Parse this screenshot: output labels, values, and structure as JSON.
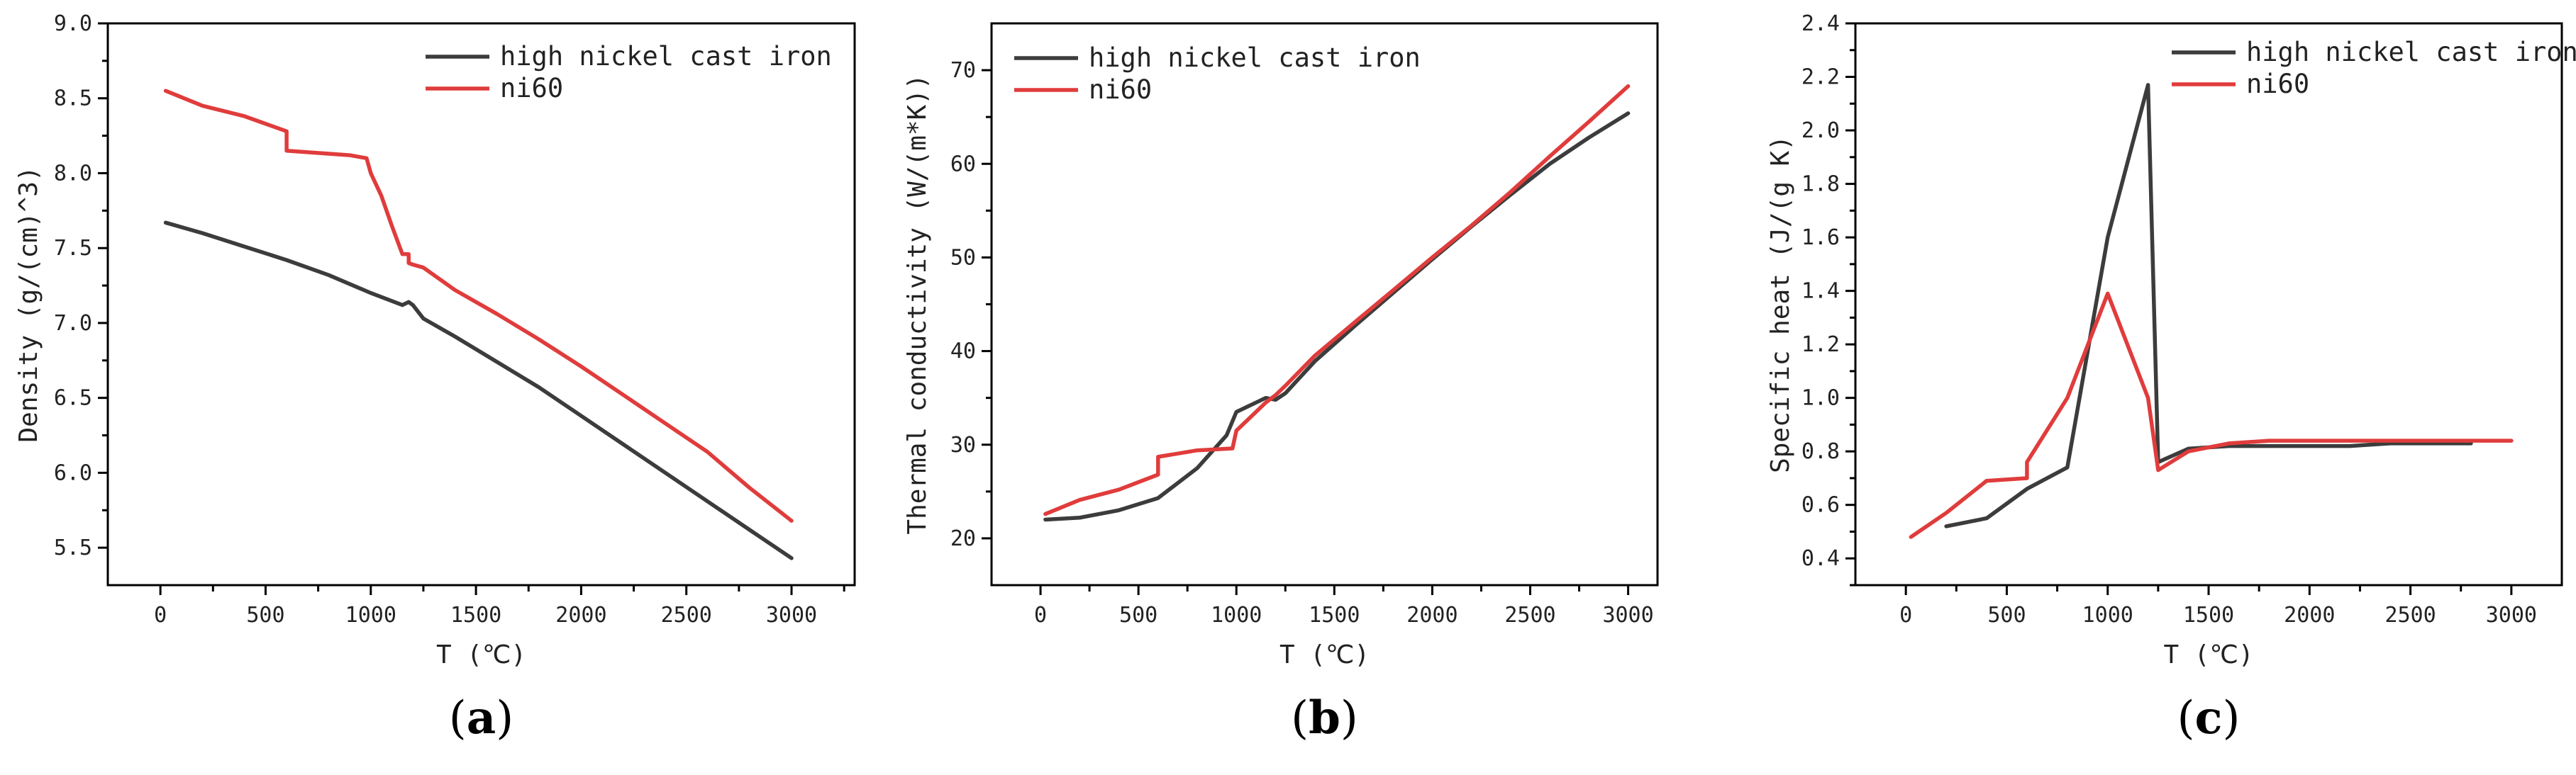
{
  "colors": {
    "high_nickel_cast_iron": "#3c3c3c",
    "ni60": "#e03c3c"
  },
  "chart_data": [
    {
      "type": "line",
      "panel_label": "(a)",
      "panel_letter": "a",
      "xlabel": "T (℃)",
      "ylabel": "Density (g/(cm)^3)",
      "xlim": [
        -250,
        3300
      ],
      "ylim": [
        5.25,
        9.0
      ],
      "xticks": [
        0,
        500,
        1000,
        1500,
        2000,
        2500,
        3000
      ],
      "xtick_labels": [
        "0",
        "500",
        "1000",
        "1500",
        "2000",
        "2500",
        "3000"
      ],
      "yticks": [
        5.5,
        6.0,
        6.5,
        7.0,
        7.5,
        8.0,
        8.5,
        9.0
      ],
      "ytick_labels": [
        "5.5",
        "6.0",
        "6.5",
        "7.0",
        "7.5",
        "8.0",
        "8.5",
        "9.0"
      ],
      "legend_position": "top-right",
      "series": [
        {
          "name": "high nickel cast iron",
          "color_key": "high_nickel_cast_iron",
          "x": [
            25,
            200,
            400,
            600,
            800,
            1000,
            1150,
            1180,
            1200,
            1250,
            1400,
            1600,
            1800,
            2000,
            2200,
            2400,
            2600,
            2800,
            3000
          ],
          "y": [
            7.67,
            7.6,
            7.51,
            7.42,
            7.32,
            7.2,
            7.12,
            7.14,
            7.12,
            7.03,
            6.91,
            6.74,
            6.57,
            6.38,
            6.19,
            6.0,
            5.81,
            5.62,
            5.43
          ]
        },
        {
          "name": "ni60",
          "color_key": "ni60",
          "x": [
            25,
            200,
            400,
            600,
            600,
            700,
            900,
            980,
            1000,
            1050,
            1100,
            1150,
            1180,
            1180,
            1200,
            1250,
            1400,
            1600,
            1800,
            2000,
            2200,
            2400,
            2600,
            2800,
            3000
          ],
          "y": [
            8.55,
            8.45,
            8.38,
            8.28,
            8.15,
            8.14,
            8.12,
            8.1,
            8.0,
            7.85,
            7.65,
            7.46,
            7.46,
            7.4,
            7.39,
            7.37,
            7.22,
            7.06,
            6.89,
            6.71,
            6.52,
            6.33,
            6.14,
            5.9,
            5.68
          ]
        }
      ]
    },
    {
      "type": "line",
      "panel_label": "(b)",
      "panel_letter": "b",
      "xlabel": "T (℃)",
      "ylabel": "Thermal conductivity (W/(m*K))",
      "xlim": [
        -250,
        3150
      ],
      "ylim": [
        15,
        75
      ],
      "xticks": [
        0,
        500,
        1000,
        1500,
        2000,
        2500,
        3000
      ],
      "xtick_labels": [
        "0",
        "500",
        "1000",
        "1500",
        "2000",
        "2500",
        "3000"
      ],
      "yticks": [
        20,
        30,
        40,
        50,
        60,
        70
      ],
      "ytick_labels": [
        "20",
        "30",
        "40",
        "50",
        "60",
        "70"
      ],
      "legend_position": "top-left",
      "series": [
        {
          "name": "high nickel cast iron",
          "color_key": "high_nickel_cast_iron",
          "x": [
            25,
            200,
            400,
            600,
            800,
            950,
            1000,
            1150,
            1200,
            1250,
            1400,
            1600,
            1800,
            2000,
            2200,
            2400,
            2600,
            2800,
            3000
          ],
          "y": [
            22.0,
            22.2,
            23.0,
            24.3,
            27.5,
            31.0,
            33.5,
            35.0,
            34.8,
            35.5,
            38.9,
            42.6,
            46.2,
            49.8,
            53.3,
            56.7,
            60.0,
            62.8,
            65.4
          ]
        },
        {
          "name": "ni60",
          "color_key": "ni60",
          "x": [
            25,
            200,
            400,
            600,
            600,
            800,
            980,
            1000,
            1150,
            1200,
            1250,
            1400,
            1600,
            1800,
            2000,
            2200,
            2400,
            2600,
            2800,
            3000
          ],
          "y": [
            22.6,
            24.1,
            25.2,
            26.8,
            28.7,
            29.4,
            29.6,
            31.5,
            34.5,
            35.3,
            36.3,
            39.5,
            43.0,
            46.5,
            50.0,
            53.4,
            57.0,
            60.8,
            64.5,
            68.3
          ]
        }
      ]
    },
    {
      "type": "line",
      "panel_label": "(c)",
      "panel_letter": "c",
      "xlabel": "T (℃)",
      "ylabel": "Specific heat (J/(g K)",
      "xlim": [
        -250,
        3250
      ],
      "ylim": [
        0.3,
        2.4
      ],
      "xticks": [
        0,
        500,
        1000,
        1500,
        2000,
        2500,
        3000
      ],
      "xtick_labels": [
        "0",
        "500",
        "1000",
        "1500",
        "2000",
        "2500",
        "3000"
      ],
      "yticks": [
        0.4,
        0.6,
        0.8,
        1.0,
        1.2,
        1.4,
        1.6,
        1.8,
        2.0,
        2.2,
        2.4
      ],
      "ytick_labels": [
        "0.4",
        "0.6",
        "0.8",
        "1.0",
        "1.2",
        "1.4",
        "1.6",
        "1.8",
        "2.0",
        "2.2",
        "2.4"
      ],
      "legend_position": "top-right",
      "series": [
        {
          "name": "high nickel cast iron",
          "color_key": "high_nickel_cast_iron",
          "x": [
            200,
            400,
            600,
            800,
            1000,
            1200,
            1250,
            1400,
            1600,
            1800,
            2000,
            2200,
            2400,
            2600,
            2800
          ],
          "y": [
            0.52,
            0.55,
            0.66,
            0.74,
            1.6,
            2.17,
            0.76,
            0.81,
            0.82,
            0.82,
            0.82,
            0.82,
            0.83,
            0.83,
            0.83
          ]
        },
        {
          "name": "ni60",
          "color_key": "ni60",
          "x": [
            25,
            200,
            400,
            600,
            600,
            800,
            1000,
            1200,
            1250,
            1400,
            1600,
            1800,
            2000,
            2200,
            2400,
            2600,
            2800,
            3000
          ],
          "y": [
            0.48,
            0.57,
            0.69,
            0.7,
            0.76,
            1.0,
            1.39,
            1.0,
            0.73,
            0.8,
            0.83,
            0.84,
            0.84,
            0.84,
            0.84,
            0.84,
            0.84,
            0.84
          ]
        }
      ]
    }
  ]
}
